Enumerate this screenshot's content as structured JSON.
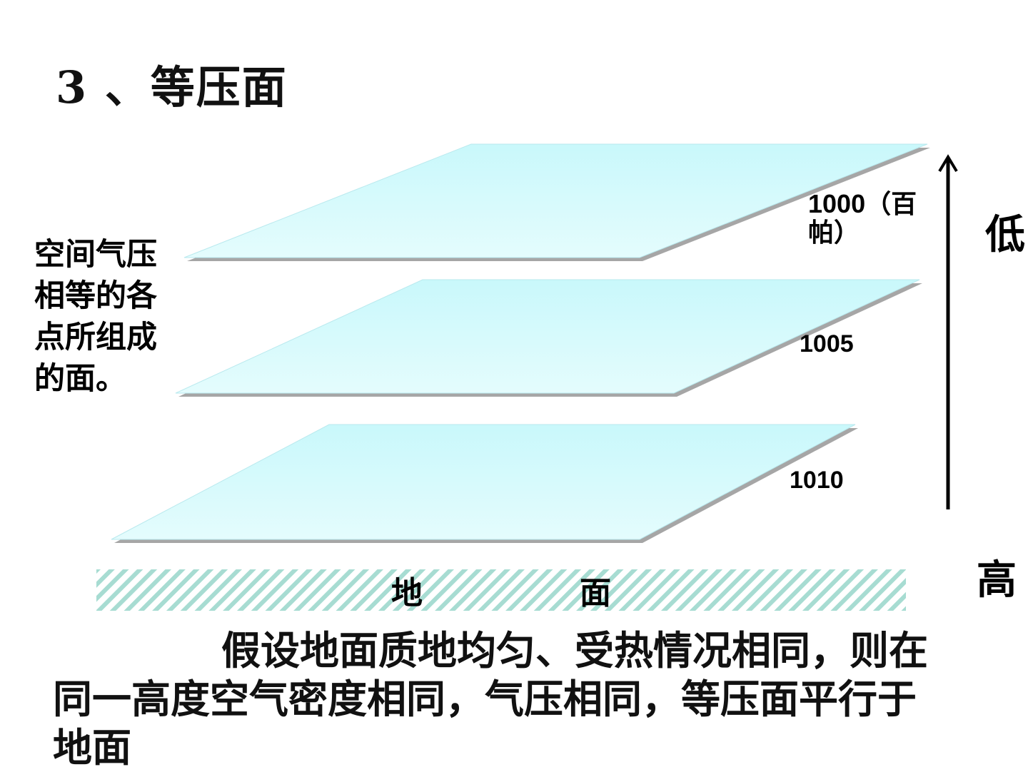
{
  "title": "3 、等压面",
  "definition": "空间气压相等的各点所组成的面。",
  "surfaces": [
    {
      "label": "1000（百帕）"
    },
    {
      "label": "1005"
    },
    {
      "label": "1010"
    }
  ],
  "axis": {
    "top_label": "低",
    "bottom_label": "高"
  },
  "ground": {
    "label_left": "地",
    "label_right": "面"
  },
  "explanation": "假设地面质地均匀、受热情况相同，则在同一高度空气密度相同，气压相同，等压面平行于地面",
  "colors": {
    "plane_fill_top": "#c9f8fb",
    "plane_fill_bottom": "#e2fcfd",
    "plane_edge": "#a6a6a6",
    "hatch": "#a7dcd2"
  }
}
